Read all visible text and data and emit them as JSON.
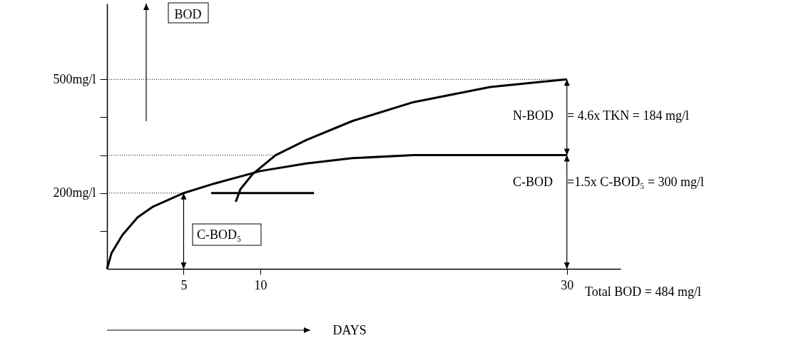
{
  "chart_data": {
    "type": "line",
    "xlabel": "DAYS",
    "ylabel": "BOD",
    "xlim": [
      0,
      33.5
    ],
    "ylim": [
      0,
      700
    ],
    "xticks": [
      5,
      10,
      30
    ],
    "yticks": [
      {
        "value": 100,
        "label": null
      },
      {
        "value": 200,
        "label": "200mg/l"
      },
      {
        "value": 300,
        "label": null
      },
      {
        "value": 400,
        "label": null
      },
      {
        "value": 500,
        "label": "500mg/l"
      }
    ],
    "series": [
      {
        "color": "#000000",
        "x": [
          0,
          0.3,
          1,
          2,
          3,
          5,
          7,
          10,
          13,
          16,
          20,
          25,
          30
        ],
        "values": [
          0,
          42,
          89,
          136,
          164,
          200,
          225,
          258,
          278,
          292,
          300,
          300,
          300
        ]
      },
      {
        "color": "#000000",
        "x": [
          8.4,
          8.7,
          9.5,
          11,
          13,
          16,
          20,
          25,
          30
        ],
        "values": [
          177,
          210,
          250,
          300,
          340,
          390,
          440,
          480,
          500
        ]
      },
      {
        "color": "#000000",
        "x": [
          6.8,
          13.5
        ],
        "values": [
          200,
          200
        ]
      }
    ],
    "ref_lines": [
      {
        "axis": "y",
        "value": 500,
        "label": null,
        "color": "#000000",
        "line_style": "dotted"
      },
      {
        "axis": "y",
        "value": 300,
        "label": null,
        "color": "#000000",
        "line_style": "dotted"
      },
      {
        "axis": "y",
        "value": 200,
        "label": null,
        "color": "#000000",
        "line_style": "dotted"
      }
    ],
    "annotations": [
      "N-BOD",
      "= 4.6x TKN   = 184 mg/l",
      "C-BOD",
      "=1.5x C-BOD₅ = 300 mg/l",
      "C-BOD₅",
      "Total BOD = 484 mg/l"
    ],
    "grid": false,
    "marker": "none",
    "line_style": "solid"
  }
}
